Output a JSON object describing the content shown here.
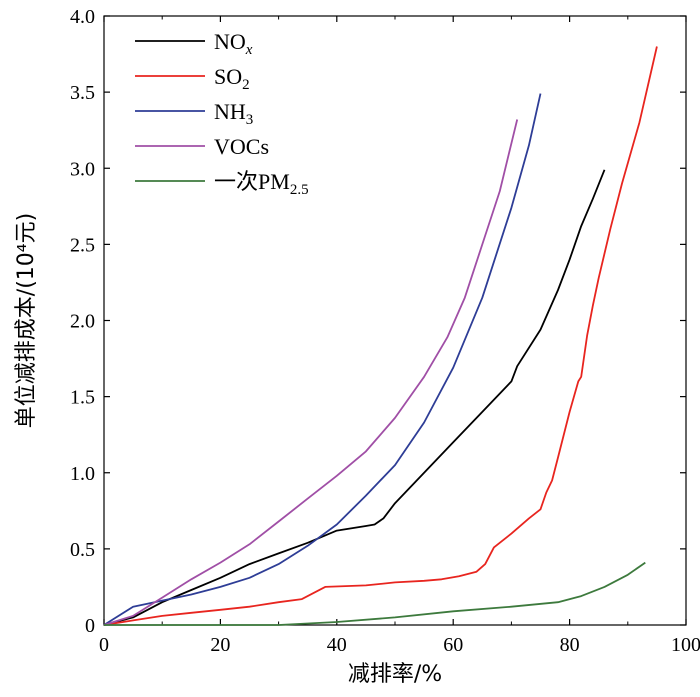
{
  "chart_data": {
    "type": "line",
    "xlabel": "减排率/%",
    "ylabel": "单位减排成本/(10⁴元)",
    "xlim": [
      0,
      100
    ],
    "ylim": [
      0,
      4.0
    ],
    "x_ticks": [
      "0",
      "20",
      "40",
      "60",
      "80",
      "100"
    ],
    "y_ticks": [
      "0",
      "0.5",
      "1.0",
      "1.5",
      "2.0",
      "2.5",
      "3.0",
      "3.5",
      "4.0"
    ],
    "x_tick_values": [
      0,
      20,
      40,
      60,
      80,
      100
    ],
    "y_tick_values": [
      0,
      0.5,
      1.0,
      1.5,
      2.0,
      2.5,
      3.0,
      3.5,
      4.0
    ],
    "grid": false,
    "legend_position": "top-left",
    "series": [
      {
        "name": "NOx",
        "legend": {
          "main": "NO",
          "sub": "x",
          "sub_style": "italic"
        },
        "color": "#000000",
        "points": [
          [
            0,
            0
          ],
          [
            5,
            0.05
          ],
          [
            10,
            0.15
          ],
          [
            15,
            0.23
          ],
          [
            20,
            0.31
          ],
          [
            25,
            0.4
          ],
          [
            30,
            0.47
          ],
          [
            35,
            0.54
          ],
          [
            40,
            0.62
          ],
          [
            45,
            0.65
          ],
          [
            46.5,
            0.66
          ],
          [
            48,
            0.7
          ],
          [
            50,
            0.8
          ],
          [
            55,
            1.0
          ],
          [
            60,
            1.2
          ],
          [
            65,
            1.4
          ],
          [
            70,
            1.6
          ],
          [
            71,
            1.7
          ],
          [
            75,
            1.94
          ],
          [
            78,
            2.2
          ],
          [
            80,
            2.4
          ],
          [
            82,
            2.62
          ],
          [
            84,
            2.8
          ],
          [
            86,
            2.99
          ]
        ]
      },
      {
        "name": "SO2",
        "legend": {
          "main": "SO",
          "sub": "2"
        },
        "color": "#e8251f",
        "points": [
          [
            0,
            0
          ],
          [
            5,
            0.03
          ],
          [
            10,
            0.06
          ],
          [
            15,
            0.08
          ],
          [
            20,
            0.1
          ],
          [
            25,
            0.12
          ],
          [
            30,
            0.15
          ],
          [
            34,
            0.17
          ],
          [
            38,
            0.25
          ],
          [
            45,
            0.26
          ],
          [
            50,
            0.28
          ],
          [
            55,
            0.29
          ],
          [
            58,
            0.3
          ],
          [
            61,
            0.32
          ],
          [
            64,
            0.35
          ],
          [
            65.5,
            0.4
          ],
          [
            67,
            0.51
          ],
          [
            70,
            0.6
          ],
          [
            73,
            0.7
          ],
          [
            75,
            0.76
          ],
          [
            76,
            0.87
          ],
          [
            77,
            0.95
          ],
          [
            78,
            1.1
          ],
          [
            80,
            1.4
          ],
          [
            81.5,
            1.6
          ],
          [
            82,
            1.63
          ],
          [
            83,
            1.9
          ],
          [
            84,
            2.1
          ],
          [
            85,
            2.28
          ],
          [
            87,
            2.6
          ],
          [
            89,
            2.9
          ],
          [
            92,
            3.3
          ],
          [
            95,
            3.8
          ]
        ]
      },
      {
        "name": "NH3",
        "legend": {
          "main": "NH",
          "sub": "3"
        },
        "color": "#2e3d96",
        "points": [
          [
            0,
            0
          ],
          [
            5,
            0.12
          ],
          [
            10,
            0.16
          ],
          [
            15,
            0.2
          ],
          [
            20,
            0.25
          ],
          [
            25,
            0.31
          ],
          [
            30,
            0.4
          ],
          [
            35,
            0.52
          ],
          [
            40,
            0.66
          ],
          [
            45,
            0.85
          ],
          [
            50,
            1.05
          ],
          [
            55,
            1.33
          ],
          [
            60,
            1.69
          ],
          [
            65,
            2.15
          ],
          [
            70,
            2.74
          ],
          [
            73,
            3.15
          ],
          [
            75,
            3.49
          ]
        ]
      },
      {
        "name": "VOCs",
        "legend": {
          "main": "VOCs",
          "sub": ""
        },
        "color": "#a04fa6",
        "points": [
          [
            0,
            0
          ],
          [
            5,
            0.06
          ],
          [
            10,
            0.18
          ],
          [
            15,
            0.3
          ],
          [
            20,
            0.41
          ],
          [
            25,
            0.53
          ],
          [
            30,
            0.68
          ],
          [
            35,
            0.83
          ],
          [
            40,
            0.98
          ],
          [
            45,
            1.14
          ],
          [
            50,
            1.36
          ],
          [
            55,
            1.63
          ],
          [
            59,
            1.89
          ],
          [
            62,
            2.15
          ],
          [
            65,
            2.5
          ],
          [
            68,
            2.85
          ],
          [
            71,
            3.32
          ]
        ]
      },
      {
        "name": "一次PM2.5",
        "legend": {
          "main": "一次PM",
          "sub": "2.5"
        },
        "color": "#3d7a3d",
        "points": [
          [
            0,
            0
          ],
          [
            10,
            0
          ],
          [
            20,
            0
          ],
          [
            30,
            0
          ],
          [
            35,
            0.01
          ],
          [
            40,
            0.02
          ],
          [
            50,
            0.05
          ],
          [
            60,
            0.09
          ],
          [
            70,
            0.12
          ],
          [
            78,
            0.15
          ],
          [
            81,
            0.18
          ],
          [
            82,
            0.19
          ],
          [
            86,
            0.25
          ],
          [
            90,
            0.33
          ],
          [
            93,
            0.41
          ]
        ]
      }
    ]
  }
}
